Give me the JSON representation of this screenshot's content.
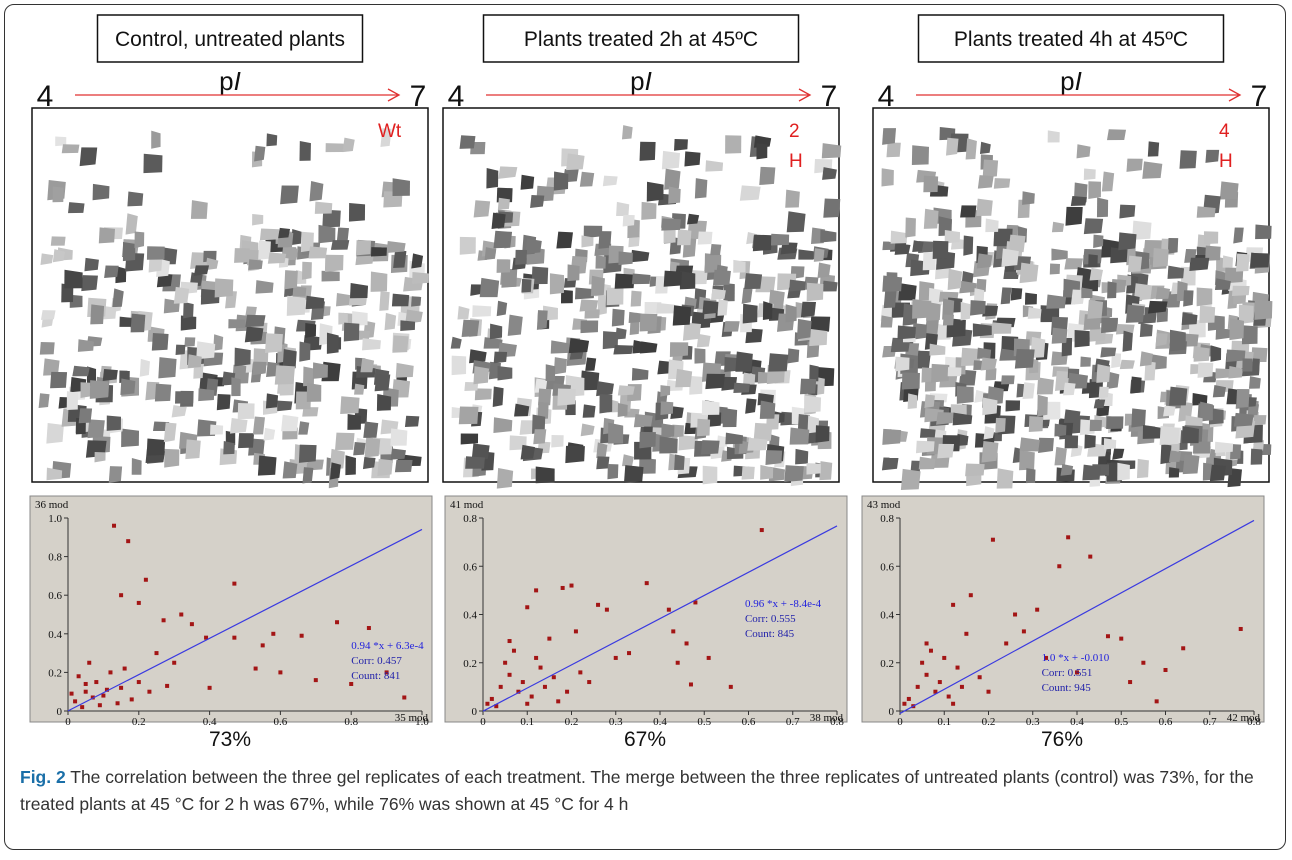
{
  "panels": [
    {
      "title": "Control, untreated plants",
      "pi_label": [
        "p",
        "I"
      ],
      "pi_start": "4",
      "pi_end": "7",
      "corner_label": [
        "Wt"
      ],
      "overlap": "73%"
    },
    {
      "title": "Plants treated  2h at 45ºC",
      "pi_label": [
        "p",
        "I"
      ],
      "pi_start": "4",
      "pi_end": "7",
      "corner_label": [
        "2",
        "H"
      ],
      "overlap": "67%"
    },
    {
      "title": "Plants treated  4h at 45ºC",
      "pi_label": [
        "p",
        "I"
      ],
      "pi_start": "4",
      "pi_end": "7",
      "corner_label": [
        "4",
        "H"
      ],
      "overlap": "76%"
    }
  ],
  "chart_data": [
    {
      "type": "scatter",
      "y_label": "36 mod",
      "x_label": "35 mod",
      "color": "#a31515",
      "line_color": "#3a3ae0",
      "fit_line": {
        "slope": 0.94,
        "intercept": 0.00063,
        "label": "0.94 *x + 6.3e-4"
      },
      "corr": "Corr: 0.457",
      "count": "Count: 841",
      "xlim": [
        0,
        1
      ],
      "ylim": [
        0,
        1
      ],
      "xticks": [
        0,
        0.2,
        0.4,
        0.6,
        0.8,
        {
          "value": 1,
          "label": "1.0"
        }
      ],
      "yticks": [
        0,
        0.2,
        0.4,
        0.6,
        0.8,
        {
          "value": 1,
          "label": "1.0"
        }
      ],
      "x": [
        0.13,
        0.17,
        0.22,
        0.47,
        0.15,
        0.2,
        0.32,
        0.35,
        0.27,
        0.76,
        0.85,
        0.58,
        0.66,
        0.47,
        0.39,
        0.55,
        0.6,
        0.53,
        0.7,
        0.8,
        0.9,
        0.95,
        0.4,
        0.3,
        0.25,
        0.02,
        0.05,
        0.08,
        0.1,
        0.04,
        0.12,
        0.06,
        0.15,
        0.18,
        0.03,
        0.09,
        0.2,
        0.07,
        0.11,
        0.14,
        0.01,
        0.16,
        0.05,
        0.23,
        0.28
      ],
      "y": [
        0.96,
        0.88,
        0.68,
        0.66,
        0.6,
        0.56,
        0.5,
        0.45,
        0.47,
        0.46,
        0.43,
        0.4,
        0.39,
        0.38,
        0.38,
        0.34,
        0.2,
        0.22,
        0.16,
        0.14,
        0.2,
        0.07,
        0.12,
        0.25,
        0.3,
        0.05,
        0.1,
        0.15,
        0.08,
        0.02,
        0.2,
        0.25,
        0.12,
        0.06,
        0.18,
        0.03,
        0.15,
        0.07,
        0.11,
        0.04,
        0.09,
        0.22,
        0.14,
        0.1,
        0.13
      ]
    },
    {
      "type": "scatter",
      "y_label": "41 mod",
      "x_label": "38 mod",
      "color": "#a31515",
      "line_color": "#3a3ae0",
      "fit_line": {
        "slope": 0.96,
        "intercept": -0.00084,
        "label": "0.96 *x + -8.4e-4"
      },
      "corr": "Corr: 0.555",
      "count": "Count: 845",
      "xlim": [
        0,
        0.8
      ],
      "ylim": [
        0,
        0.8
      ],
      "xticks": [
        0,
        0.1,
        0.2,
        0.3,
        0.4,
        0.5,
        0.6,
        0.7,
        0.8
      ],
      "yticks": [
        0,
        0.2,
        0.4,
        0.6,
        0.8
      ],
      "x": [
        0.63,
        0.37,
        0.2,
        0.18,
        0.12,
        0.1,
        0.26,
        0.28,
        0.42,
        0.48,
        0.43,
        0.44,
        0.47,
        0.46,
        0.33,
        0.3,
        0.51,
        0.56,
        0.21,
        0.15,
        0.02,
        0.04,
        0.06,
        0.08,
        0.03,
        0.05,
        0.09,
        0.11,
        0.13,
        0.07,
        0.01,
        0.14,
        0.16,
        0.12,
        0.19,
        0.22,
        0.24,
        0.17,
        0.06,
        0.1
      ],
      "y": [
        0.75,
        0.53,
        0.52,
        0.51,
        0.5,
        0.43,
        0.44,
        0.42,
        0.42,
        0.45,
        0.33,
        0.2,
        0.11,
        0.28,
        0.24,
        0.22,
        0.22,
        0.1,
        0.33,
        0.3,
        0.05,
        0.1,
        0.15,
        0.08,
        0.02,
        0.2,
        0.12,
        0.06,
        0.18,
        0.25,
        0.03,
        0.1,
        0.14,
        0.22,
        0.08,
        0.16,
        0.12,
        0.04,
        0.29,
        0.03
      ]
    },
    {
      "type": "scatter",
      "y_label": "43 mod",
      "x_label": "42 mod",
      "color": "#a31515",
      "line_color": "#3a3ae0",
      "fit_line": {
        "slope": 1.0,
        "intercept": -0.01,
        "label": "1.0 *x + -0.010"
      },
      "corr": "Corr: 0.551",
      "count": "Count: 945",
      "xlim": [
        0,
        0.8
      ],
      "ylim": [
        0,
        0.8
      ],
      "xticks": [
        0,
        0.1,
        0.2,
        0.3,
        0.4,
        0.5,
        0.6,
        0.7,
        0.8
      ],
      "yticks": [
        0,
        0.2,
        0.4,
        0.6,
        0.8
      ],
      "x": [
        0.21,
        0.38,
        0.43,
        0.36,
        0.31,
        0.16,
        0.12,
        0.26,
        0.28,
        0.47,
        0.5,
        0.55,
        0.6,
        0.64,
        0.77,
        0.52,
        0.58,
        0.4,
        0.33,
        0.24,
        0.02,
        0.04,
        0.06,
        0.08,
        0.03,
        0.05,
        0.09,
        0.11,
        0.13,
        0.07,
        0.01,
        0.14,
        0.18,
        0.1,
        0.2,
        0.15,
        0.06,
        0.12
      ],
      "y": [
        0.71,
        0.72,
        0.64,
        0.6,
        0.42,
        0.48,
        0.44,
        0.4,
        0.33,
        0.31,
        0.3,
        0.2,
        0.17,
        0.26,
        0.34,
        0.12,
        0.04,
        0.16,
        0.22,
        0.28,
        0.05,
        0.1,
        0.15,
        0.08,
        0.02,
        0.2,
        0.12,
        0.06,
        0.18,
        0.25,
        0.03,
        0.1,
        0.14,
        0.22,
        0.08,
        0.32,
        0.28,
        0.03
      ]
    }
  ],
  "caption": {
    "label": "Fig. 2",
    "text": " The correlation between the three gel replicates of each treatment. The merge between the three replicates of untreated plants (control) was 73%, for the treated plants at 45 °C for 2 h was 67%, while 76% was shown at 45 °C for 4 h"
  }
}
